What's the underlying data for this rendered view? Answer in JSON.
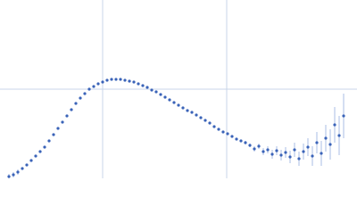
{
  "chart_data": {
    "type": "scatter",
    "x": [
      10,
      15,
      20,
      25,
      30,
      35,
      40,
      45,
      50,
      55,
      60,
      65,
      70,
      75,
      80,
      85,
      90,
      95,
      100,
      105,
      110,
      115,
      120,
      125,
      130,
      135,
      140,
      145,
      150,
      155,
      160,
      165,
      170,
      175,
      180,
      185,
      190,
      195,
      200,
      205,
      210,
      215,
      220,
      225,
      230,
      235,
      240,
      245,
      250,
      255,
      260,
      265,
      270,
      275,
      280,
      285,
      290,
      295,
      300,
      305,
      310,
      315,
      320,
      325,
      330,
      335,
      340,
      345,
      350,
      355,
      360,
      365,
      370,
      375,
      380,
      385
    ],
    "values": [
      2,
      4,
      7,
      11,
      15,
      20,
      25,
      30,
      35,
      42,
      49,
      56,
      63,
      70,
      77,
      84,
      90,
      95,
      100,
      103,
      106,
      108,
      110,
      111,
      111,
      111,
      110,
      109,
      108,
      106,
      104,
      102,
      99,
      97,
      94,
      91,
      88,
      85,
      82,
      79,
      76,
      74,
      71,
      68,
      65,
      62,
      58,
      55,
      52,
      50,
      47,
      44,
      42,
      40,
      37,
      33,
      36,
      30,
      32,
      27,
      31,
      26,
      29,
      24,
      32,
      22,
      30,
      35,
      25,
      40,
      28,
      45,
      38,
      60,
      48,
      70
    ],
    "errors": [
      3,
      3,
      3,
      0.5,
      0.5,
      0.5,
      0.5,
      0.5,
      0.5,
      0.5,
      0.5,
      0.5,
      0.5,
      0.5,
      0.5,
      0.5,
      0.5,
      0.5,
      0.5,
      0.5,
      0.5,
      0.5,
      0.5,
      0.5,
      0.5,
      0.5,
      0.5,
      0.5,
      0.5,
      0.5,
      0.5,
      0.5,
      0.5,
      0.5,
      0.5,
      0.5,
      0.5,
      0.5,
      0.5,
      0.5,
      0.5,
      0.5,
      0.5,
      0.5,
      0.5,
      0.5,
      0.5,
      0.5,
      0.5,
      0.5,
      0.5,
      1,
      1.5,
      2,
      2,
      3,
      3,
      4,
      4,
      5,
      5,
      6,
      6,
      7,
      8,
      8,
      9,
      10,
      11,
      12,
      14,
      15,
      17,
      20,
      22,
      25
    ],
    "color": "#3a63b8",
    "error_color": "#a9bde6",
    "xlim": [
      0,
      400
    ],
    "ylim": [
      0,
      200
    ],
    "xticks": [
      115,
      254
    ],
    "yticks": [
      100
    ],
    "grid": true
  }
}
